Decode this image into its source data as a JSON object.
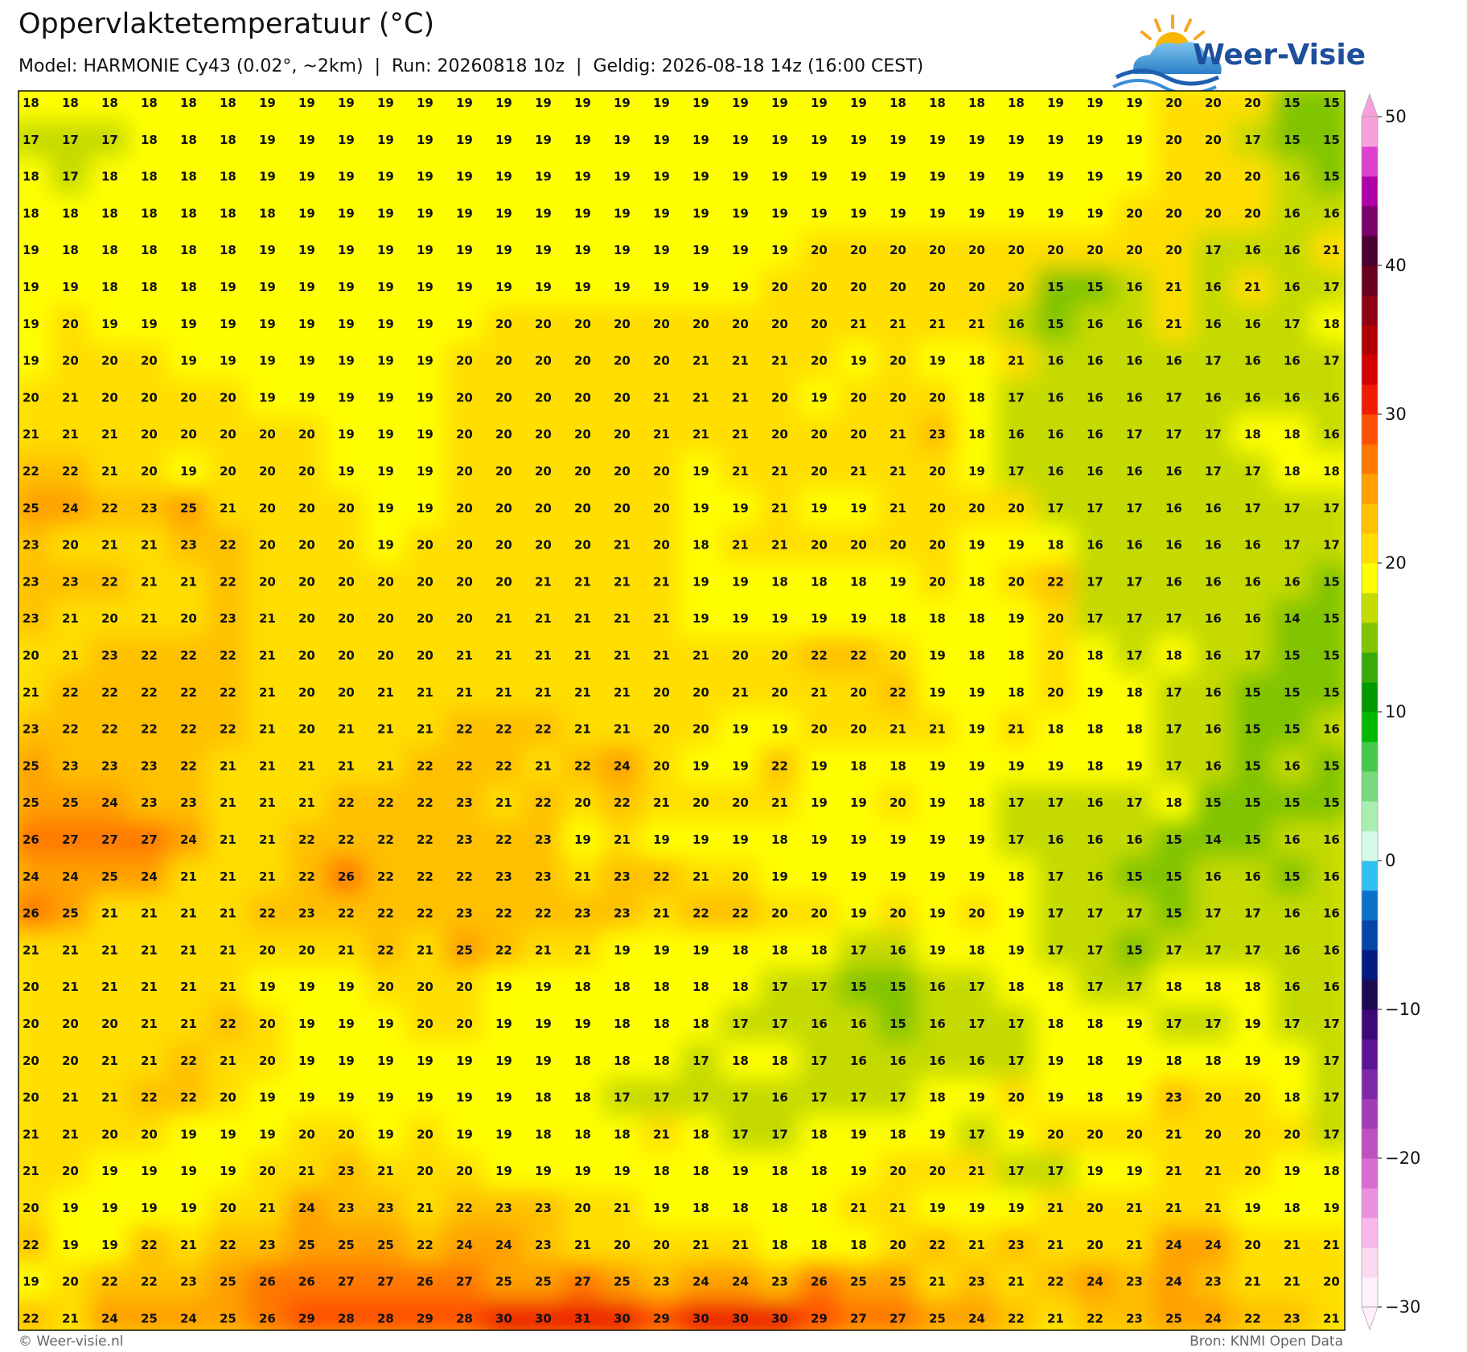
{
  "header": {
    "title": "Oppervlaktetemperatuur (°C)",
    "subtitle": "Model: HARMONIE Cy43 (0.02°, ~2km)  |  Run: 20260818 10z  |  Geldig: 2026-08-18 14z (16:00 CEST)"
  },
  "logo": {
    "text": "Weer-Visie"
  },
  "map": {
    "grid": [
      [
        18,
        18,
        18,
        18,
        18,
        18,
        19,
        19,
        19,
        19,
        19,
        19,
        19,
        19,
        19,
        19,
        19,
        19,
        19,
        19,
        19,
        19,
        18,
        18,
        18,
        18,
        19,
        19,
        19,
        20,
        20,
        20,
        15,
        15
      ],
      [
        17,
        17,
        17,
        18,
        18,
        18,
        19,
        19,
        19,
        19,
        19,
        19,
        19,
        19,
        19,
        19,
        19,
        19,
        19,
        19,
        19,
        19,
        19,
        19,
        19,
        19,
        19,
        19,
        19,
        20,
        20,
        17,
        15,
        15
      ],
      [
        18,
        17,
        18,
        18,
        18,
        18,
        19,
        19,
        19,
        19,
        19,
        19,
        19,
        19,
        19,
        19,
        19,
        19,
        19,
        19,
        19,
        19,
        19,
        19,
        19,
        19,
        19,
        19,
        19,
        20,
        20,
        20,
        16,
        15
      ],
      [
        18,
        18,
        18,
        18,
        18,
        18,
        18,
        19,
        19,
        19,
        19,
        19,
        19,
        19,
        19,
        19,
        19,
        19,
        19,
        19,
        19,
        19,
        19,
        19,
        19,
        19,
        19,
        19,
        20,
        20,
        20,
        20,
        16,
        16
      ],
      [
        19,
        18,
        18,
        18,
        18,
        18,
        19,
        19,
        19,
        19,
        19,
        19,
        19,
        19,
        19,
        19,
        19,
        19,
        19,
        19,
        20,
        20,
        20,
        20,
        20,
        20,
        20,
        20,
        20,
        20,
        17,
        16,
        16,
        21
      ],
      [
        19,
        19,
        18,
        18,
        18,
        19,
        19,
        19,
        19,
        19,
        19,
        19,
        19,
        19,
        19,
        19,
        19,
        19,
        19,
        20,
        20,
        20,
        20,
        20,
        20,
        20,
        15,
        15,
        16,
        21,
        16,
        21,
        16,
        17
      ],
      [
        19,
        20,
        19,
        19,
        19,
        19,
        19,
        19,
        19,
        19,
        19,
        19,
        20,
        20,
        20,
        20,
        20,
        20,
        20,
        20,
        20,
        21,
        21,
        21,
        21,
        16,
        15,
        16,
        16,
        21,
        16,
        16,
        17,
        18
      ],
      [
        19,
        20,
        20,
        20,
        19,
        19,
        19,
        19,
        19,
        19,
        19,
        20,
        20,
        20,
        20,
        20,
        20,
        21,
        21,
        21,
        20,
        19,
        20,
        19,
        18,
        21,
        16,
        16,
        16,
        16,
        17,
        16,
        16,
        17
      ],
      [
        20,
        21,
        20,
        20,
        20,
        20,
        19,
        19,
        19,
        19,
        19,
        20,
        20,
        20,
        20,
        20,
        21,
        21,
        21,
        20,
        19,
        20,
        20,
        20,
        18,
        17,
        16,
        16,
        16,
        17,
        16,
        16,
        16,
        16
      ],
      [
        21,
        21,
        21,
        20,
        20,
        20,
        20,
        20,
        19,
        19,
        19,
        20,
        20,
        20,
        20,
        20,
        21,
        21,
        21,
        20,
        20,
        20,
        21,
        23,
        18,
        16,
        16,
        16,
        17,
        17,
        17,
        18,
        18,
        16
      ],
      [
        22,
        22,
        21,
        20,
        19,
        20,
        20,
        20,
        19,
        19,
        19,
        20,
        20,
        20,
        20,
        20,
        20,
        19,
        21,
        21,
        20,
        21,
        21,
        20,
        19,
        17,
        16,
        16,
        16,
        16,
        17,
        17,
        18,
        18
      ],
      [
        25,
        24,
        22,
        23,
        25,
        21,
        20,
        20,
        20,
        19,
        19,
        20,
        20,
        20,
        20,
        20,
        20,
        19,
        19,
        21,
        19,
        19,
        21,
        20,
        20,
        20,
        17,
        17,
        17,
        16,
        16,
        17,
        17,
        17
      ],
      [
        23,
        20,
        21,
        21,
        23,
        22,
        20,
        20,
        20,
        19,
        20,
        20,
        20,
        20,
        20,
        21,
        20,
        18,
        21,
        21,
        20,
        20,
        20,
        20,
        19,
        19,
        18,
        16,
        16,
        16,
        16,
        16,
        17,
        17
      ],
      [
        23,
        23,
        22,
        21,
        21,
        22,
        20,
        20,
        20,
        20,
        20,
        20,
        20,
        21,
        21,
        21,
        21,
        19,
        19,
        18,
        18,
        18,
        19,
        20,
        18,
        20,
        22,
        17,
        17,
        16,
        16,
        16,
        16,
        15
      ],
      [
        23,
        21,
        20,
        21,
        20,
        23,
        21,
        20,
        20,
        20,
        20,
        20,
        21,
        21,
        21,
        21,
        21,
        19,
        19,
        19,
        19,
        19,
        18,
        18,
        18,
        19,
        20,
        17,
        17,
        17,
        16,
        16,
        14,
        15
      ],
      [
        20,
        21,
        23,
        22,
        22,
        22,
        21,
        20,
        20,
        20,
        20,
        21,
        21,
        21,
        21,
        21,
        21,
        21,
        20,
        20,
        22,
        22,
        20,
        19,
        18,
        18,
        20,
        18,
        17,
        18,
        16,
        17,
        15,
        15
      ],
      [
        21,
        22,
        22,
        22,
        22,
        22,
        21,
        20,
        20,
        21,
        21,
        21,
        21,
        21,
        21,
        21,
        20,
        20,
        21,
        20,
        21,
        20,
        22,
        19,
        19,
        18,
        20,
        19,
        18,
        17,
        16,
        15,
        15,
        15
      ],
      [
        23,
        22,
        22,
        22,
        22,
        22,
        21,
        20,
        21,
        21,
        21,
        22,
        22,
        22,
        21,
        21,
        20,
        20,
        19,
        19,
        20,
        20,
        21,
        21,
        19,
        21,
        18,
        18,
        18,
        17,
        16,
        15,
        15,
        16
      ],
      [
        25,
        23,
        23,
        23,
        22,
        21,
        21,
        21,
        21,
        21,
        22,
        22,
        22,
        21,
        22,
        24,
        20,
        19,
        19,
        22,
        19,
        18,
        18,
        19,
        19,
        19,
        19,
        18,
        19,
        17,
        16,
        15,
        16,
        15
      ],
      [
        25,
        25,
        24,
        23,
        23,
        21,
        21,
        21,
        22,
        22,
        22,
        23,
        21,
        22,
        20,
        22,
        21,
        20,
        20,
        21,
        19,
        19,
        20,
        19,
        18,
        17,
        17,
        16,
        17,
        18,
        15,
        15,
        15,
        15
      ],
      [
        26,
        27,
        27,
        27,
        24,
        21,
        21,
        22,
        22,
        22,
        22,
        23,
        22,
        23,
        19,
        21,
        19,
        19,
        19,
        18,
        19,
        19,
        19,
        19,
        19,
        17,
        16,
        16,
        16,
        15,
        14,
        15,
        16,
        16
      ],
      [
        24,
        24,
        25,
        24,
        21,
        21,
        21,
        22,
        26,
        22,
        22,
        22,
        23,
        23,
        21,
        23,
        22,
        21,
        20,
        19,
        19,
        19,
        19,
        19,
        19,
        18,
        17,
        16,
        15,
        15,
        16,
        16,
        15,
        16
      ],
      [
        26,
        25,
        21,
        21,
        21,
        21,
        22,
        23,
        22,
        22,
        22,
        23,
        22,
        22,
        23,
        23,
        21,
        22,
        22,
        20,
        20,
        19,
        20,
        19,
        20,
        19,
        17,
        17,
        17,
        15,
        17,
        17,
        16,
        16
      ],
      [
        21,
        21,
        21,
        21,
        21,
        21,
        20,
        20,
        21,
        22,
        21,
        25,
        22,
        21,
        21,
        19,
        19,
        19,
        18,
        18,
        18,
        17,
        16,
        19,
        18,
        19,
        17,
        17,
        15,
        17,
        17,
        17,
        16,
        16
      ],
      [
        20,
        21,
        21,
        21,
        21,
        21,
        19,
        19,
        19,
        20,
        20,
        20,
        19,
        19,
        18,
        18,
        18,
        18,
        18,
        17,
        17,
        15,
        15,
        16,
        17,
        18,
        18,
        17,
        17,
        18,
        18,
        18,
        16,
        16
      ],
      [
        20,
        20,
        20,
        21,
        21,
        22,
        20,
        19,
        19,
        19,
        20,
        20,
        19,
        19,
        19,
        18,
        18,
        18,
        17,
        17,
        16,
        16,
        15,
        16,
        17,
        17,
        18,
        18,
        19,
        17,
        17,
        19,
        17,
        17
      ],
      [
        20,
        20,
        21,
        21,
        22,
        21,
        20,
        19,
        19,
        19,
        19,
        19,
        19,
        19,
        18,
        18,
        18,
        17,
        18,
        18,
        17,
        16,
        16,
        16,
        16,
        17,
        19,
        18,
        19,
        18,
        18,
        19,
        19,
        17
      ],
      [
        20,
        21,
        21,
        22,
        22,
        20,
        19,
        19,
        19,
        19,
        19,
        19,
        19,
        18,
        18,
        17,
        17,
        17,
        17,
        16,
        17,
        17,
        17,
        18,
        19,
        20,
        19,
        18,
        19,
        23,
        20,
        20,
        18,
        17
      ],
      [
        21,
        21,
        20,
        20,
        19,
        19,
        19,
        20,
        20,
        19,
        20,
        19,
        19,
        18,
        18,
        18,
        21,
        18,
        17,
        17,
        18,
        19,
        18,
        19,
        17,
        19,
        20,
        20,
        20,
        21,
        20,
        20,
        20,
        17
      ],
      [
        21,
        20,
        19,
        19,
        19,
        19,
        20,
        21,
        23,
        21,
        20,
        20,
        19,
        19,
        19,
        19,
        18,
        18,
        19,
        18,
        18,
        19,
        20,
        20,
        21,
        17,
        17,
        19,
        19,
        21,
        21,
        20,
        19,
        18
      ],
      [
        20,
        19,
        19,
        19,
        19,
        20,
        21,
        24,
        23,
        23,
        21,
        22,
        23,
        23,
        20,
        21,
        19,
        18,
        18,
        18,
        18,
        21,
        21,
        19,
        19,
        19,
        21,
        20,
        21,
        21,
        21,
        19,
        18,
        19
      ],
      [
        22,
        19,
        19,
        22,
        21,
        22,
        23,
        25,
        25,
        25,
        22,
        24,
        24,
        23,
        21,
        20,
        20,
        21,
        21,
        18,
        18,
        18,
        20,
        22,
        21,
        23,
        21,
        20,
        21,
        24,
        24,
        20,
        21,
        21
      ],
      [
        19,
        20,
        22,
        22,
        23,
        25,
        26,
        26,
        27,
        27,
        26,
        27,
        25,
        25,
        27,
        25,
        23,
        24,
        24,
        23,
        26,
        25,
        25,
        21,
        23,
        21,
        22,
        24,
        23,
        24,
        23,
        21,
        21,
        20
      ],
      [
        22,
        21,
        24,
        25,
        24,
        25,
        26,
        29,
        28,
        28,
        29,
        28,
        30,
        30,
        31,
        30,
        29,
        30,
        30,
        30,
        29,
        27,
        27,
        25,
        24,
        22,
        21,
        22,
        23,
        25,
        24,
        22,
        23,
        21
      ]
    ]
  },
  "colorbar": {
    "lim": [
      -30,
      50
    ],
    "ticks": [
      {
        "value": -30,
        "label": "−30"
      },
      {
        "value": -20,
        "label": "−20"
      },
      {
        "value": -10,
        "label": "−10"
      },
      0,
      10,
      20,
      30,
      40,
      50
    ],
    "colors": [
      "#fff0fb",
      "#fcd9f3",
      "#f8b8ea",
      "#ea90df",
      "#d86bd2",
      "#c050c0",
      "#a03cb4",
      "#7e28a8",
      "#5c1496",
      "#3c0a78",
      "#1e0a50",
      "#041a80",
      "#0545a8",
      "#0a70c8",
      "#2ec0f0",
      "#d6fae6",
      "#a8eeb0",
      "#78da7c",
      "#44c84c",
      "#00b800",
      "#009a00",
      "#3aaa08",
      "#80c400",
      "#c4da00",
      "#ffff00",
      "#ffde00",
      "#ffc000",
      "#ffa000",
      "#ff7800",
      "#ff5000",
      "#ee1c00",
      "#d40000",
      "#b00000",
      "#8c0010",
      "#6a0020",
      "#4a0030",
      "#7a006a",
      "#b000a8",
      "#e040d0",
      "#f8a0dc"
    ]
  },
  "footer": {
    "left": "© Weer-visie.nl",
    "right": "Bron: KNMI Open Data"
  }
}
